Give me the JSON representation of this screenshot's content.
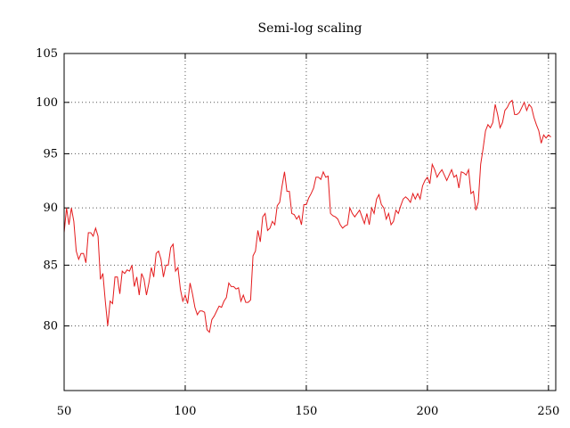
{
  "chart_data": {
    "type": "line",
    "title": "Semi-log scaling",
    "xlabel": "",
    "ylabel": "",
    "xlim": [
      50,
      253
    ],
    "ylim": [
      75,
      105
    ],
    "y_scale": "log",
    "grid": true,
    "x_ticks": [
      50,
      100,
      150,
      200,
      250
    ],
    "y_ticks": [
      80,
      85,
      90,
      95,
      100,
      105
    ],
    "series": [
      {
        "color": "#e41a1c",
        "x_start": 50,
        "x_step": 1,
        "values": [
          87.8,
          90.0,
          88.5,
          90.0,
          88.8,
          86.2,
          85.5,
          86.0,
          86.0,
          85.2,
          87.8,
          87.8,
          87.5,
          88.2,
          87.5,
          83.8,
          84.3,
          82.0,
          80.0,
          82.0,
          81.8,
          84.0,
          84.0,
          82.6,
          84.5,
          84.3,
          84.6,
          84.5,
          85.0,
          83.2,
          84.0,
          82.5,
          84.3,
          83.8,
          82.5,
          83.5,
          84.8,
          84.0,
          86.0,
          86.2,
          85.5,
          84.0,
          85.0,
          85.0,
          86.5,
          86.8,
          84.5,
          84.8,
          83.0,
          82.0,
          82.5,
          81.8,
          83.5,
          82.6,
          81.5,
          80.9,
          81.2,
          81.2,
          81.1,
          79.7,
          79.5,
          80.5,
          80.8,
          81.2,
          81.6,
          81.5,
          82.0,
          82.3,
          83.5,
          83.2,
          83.2,
          83.0,
          83.1,
          82.0,
          82.5,
          81.9,
          81.9,
          82.1,
          85.8,
          86.2,
          88.0,
          87.0,
          89.2,
          89.5,
          88.0,
          88.2,
          88.8,
          88.5,
          90.2,
          90.5,
          92.0,
          93.3,
          91.5,
          91.5,
          89.5,
          89.4,
          89.0,
          89.3,
          88.5,
          90.3,
          90.3,
          90.9,
          91.3,
          91.8,
          92.8,
          92.8,
          92.6,
          93.3,
          92.8,
          92.9,
          89.5,
          89.3,
          89.2,
          89.0,
          88.5,
          88.2,
          88.4,
          88.5,
          90.0,
          89.5,
          89.2,
          89.5,
          89.8,
          89.2,
          88.6,
          89.5,
          88.5,
          90.0,
          89.5,
          90.8,
          91.2,
          90.3,
          90.0,
          89.0,
          89.5,
          88.5,
          88.8,
          89.8,
          89.5,
          90.2,
          90.8,
          91.0,
          90.8,
          90.5,
          91.3,
          90.8,
          91.3,
          90.8,
          92.0,
          92.5,
          92.8,
          92.2,
          94.0,
          93.5,
          92.8,
          93.2,
          93.5,
          93.0,
          92.5,
          93.0,
          93.5,
          92.8,
          93.0,
          91.8,
          93.3,
          93.2,
          93.0,
          93.5,
          91.3,
          91.5,
          89.8,
          90.5,
          94.0,
          95.5,
          97.2,
          97.8,
          97.5,
          98.0,
          99.8,
          98.8,
          97.5,
          98.0,
          99.2,
          99.5,
          100.0,
          100.2,
          98.8,
          98.8,
          99.0,
          99.5,
          100.0,
          99.2,
          99.8,
          99.5,
          98.5,
          97.8,
          97.2,
          96.0,
          96.8,
          96.5,
          96.8,
          96.6
        ]
      }
    ]
  }
}
